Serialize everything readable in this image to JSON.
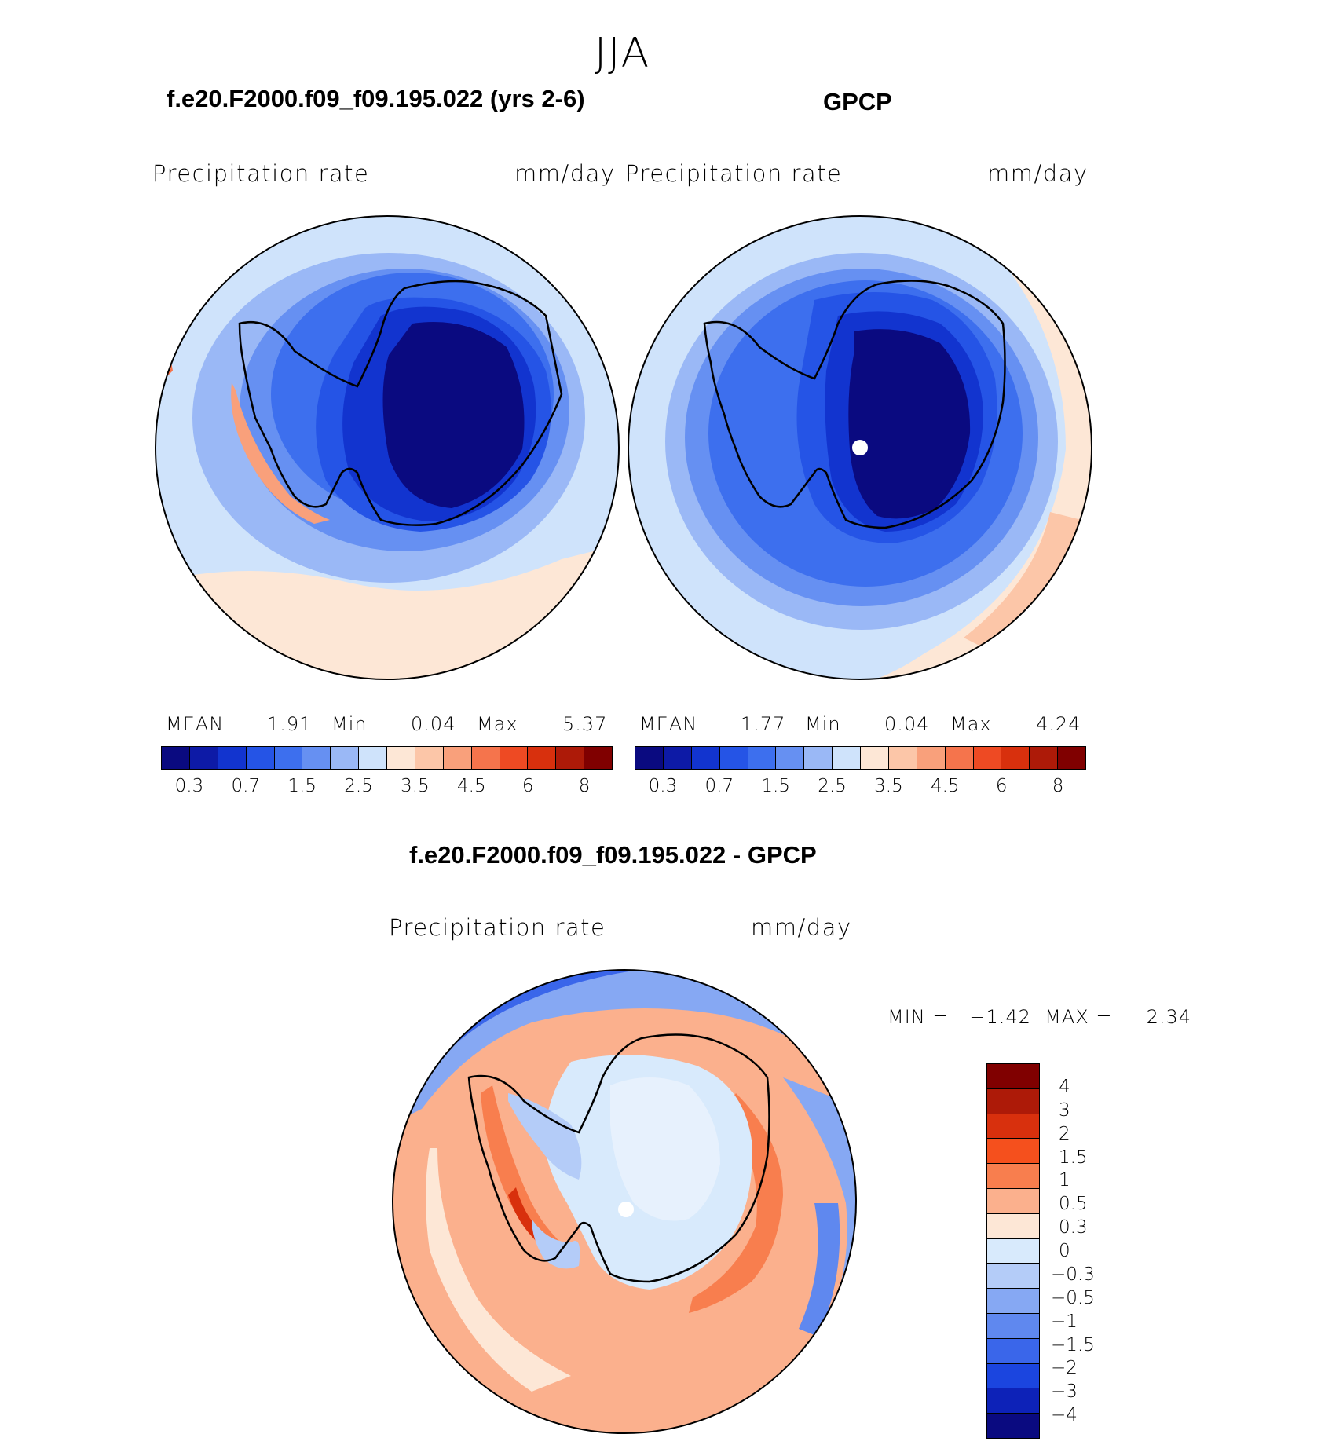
{
  "figure": {
    "season": "JJA"
  },
  "panels": [
    {
      "title": "f.e20.F2000.f09_f09.195.022 (yrs 2-6)",
      "left_label": "Precipitation  rate",
      "right_label": "mm/day",
      "stats": {
        "mean_label": "MEAN=",
        "mean": "1.91",
        "min_label": "Min=",
        "min": "0.04",
        "max_label": "Max=",
        "max": "5.37"
      }
    },
    {
      "title": "GPCP",
      "left_label": "Precipitation  rate",
      "right_label": "mm/day",
      "stats": {
        "mean_label": "MEAN=",
        "mean": "1.77",
        "min_label": "Min=",
        "min": "0.04",
        "max_label": "Max=",
        "max": "4.24"
      }
    }
  ],
  "diff_panel": {
    "title": "f.e20.F2000.f09_f09.195.022 - GPCP",
    "left_label": "Precipitation  rate",
    "right_label": "mm/day",
    "minmax": "MIN =   −1.42  MAX =     2.34"
  },
  "colorbar_main": {
    "colors": [
      "#0a0a80",
      "#0d1aa6",
      "#1234cf",
      "#2554e6",
      "#3d6fee",
      "#6690f2",
      "#9ab8f6",
      "#cfe3fb",
      "#fde7d6",
      "#fcc6a8",
      "#f9a07b",
      "#f5744c",
      "#ee4a23",
      "#d8300d",
      "#ad1a08",
      "#800000"
    ],
    "ticks": [
      "0.3",
      "0.7",
      "1.5",
      "2.5",
      "3.5",
      "4.5",
      "6",
      "8"
    ]
  },
  "colorbar_diff": {
    "colors": [
      "#800000",
      "#ad1a08",
      "#d8300d",
      "#f5501d",
      "#f87e4e",
      "#fbb08d",
      "#fde7d6",
      "#d8eafc",
      "#b4ccf8",
      "#86a8f3",
      "#5f88ef",
      "#3a66ea",
      "#1b45df",
      "#0d22b8",
      "#0a0a80"
    ],
    "ticks": [
      "4",
      "3",
      "2",
      "1.5",
      "1",
      "0.5",
      "0.3",
      "0",
      "−0.3",
      "−0.5",
      "−1",
      "−1.5",
      "−2",
      "−3",
      "−4"
    ]
  }
}
